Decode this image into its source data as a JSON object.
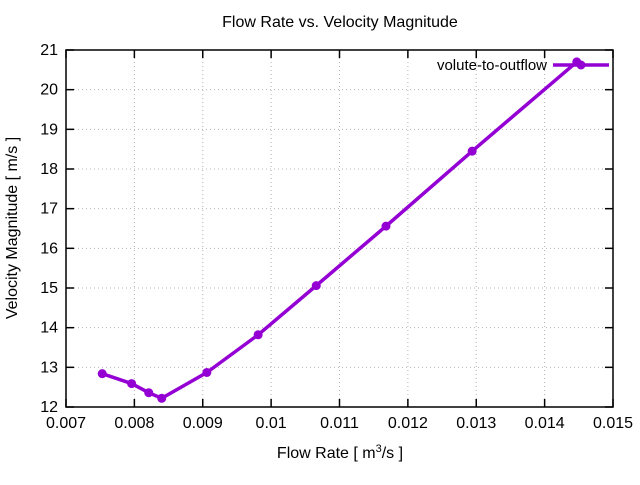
{
  "chart_data": {
    "type": "line",
    "title": "Flow Rate vs. Velocity Magnitude",
    "xlabel_parts": {
      "prefix": "Flow Rate [ m",
      "sup": "3",
      "suffix": "/s ]"
    },
    "ylabel": "Velocity Magnitude [ m/s ]",
    "xlim": [
      0.007,
      0.015
    ],
    "ylim": [
      12,
      21
    ],
    "xticks": [
      0.007,
      0.008,
      0.009,
      0.01,
      0.011,
      0.012,
      0.013,
      0.014,
      0.015
    ],
    "xtick_labels": [
      "0.007",
      "0.008",
      "0.009",
      "0.01",
      "0.011",
      "0.012",
      "0.013",
      "0.014",
      "0.015"
    ],
    "yticks": [
      12,
      13,
      14,
      15,
      16,
      17,
      18,
      19,
      20,
      21
    ],
    "ytick_labels": [
      "12",
      "13",
      "14",
      "15",
      "16",
      "17",
      "18",
      "19",
      "20",
      "21"
    ],
    "grid": true,
    "legend_position": "top-right-inside",
    "series": [
      {
        "name": "volute-to-outflow",
        "color": "#9400d3",
        "marker": "filled-circle",
        "x": [
          0.00753,
          0.00796,
          0.00821,
          0.0084,
          0.00906,
          0.00981,
          0.01066,
          0.01168,
          0.01294,
          0.01447
        ],
        "y": [
          12.84,
          12.59,
          12.36,
          12.22,
          12.87,
          13.82,
          15.06,
          16.56,
          18.45,
          20.7
        ]
      }
    ]
  },
  "colors": {
    "background": "#ffffff",
    "axis": "#000000",
    "grid": "#b3b3b3",
    "accent": "#9400d3"
  }
}
